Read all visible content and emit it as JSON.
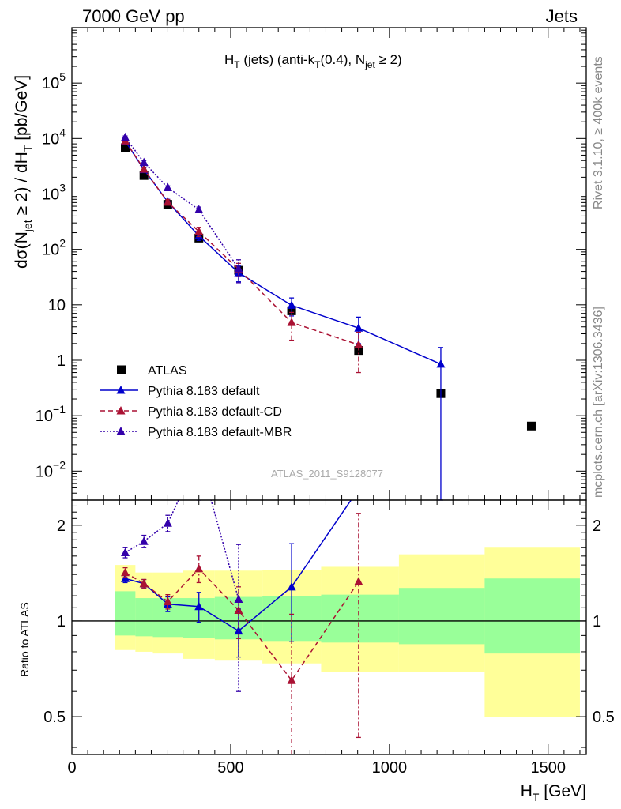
{
  "header": {
    "left": "7000 GeV pp",
    "right": "Jets"
  },
  "side_labels": {
    "rivet": "Rivet 3.1.10, ≥ 400k events",
    "mcplots": "mcplots.cern.ch [arXiv:1306.3436]"
  },
  "chart_data": [
    {
      "type": "scatter",
      "title": "H_T (jets) (anti-k_T(0.4), N_jet ≥ 2)",
      "analysis_label": "ATLAS_2011_S9128077",
      "ylabel": "dσ(N_jet ≥ 2) / dH_T [pb/GeV]",
      "yscale": "log",
      "xlim": [
        0,
        1620
      ],
      "ylim": [
        0.003,
        1000000
      ],
      "legend_position": "bottom-left",
      "y_tick_labels": [
        "10^-2",
        "10^-1",
        "1",
        "10",
        "10^2",
        "10^3",
        "10^4",
        "10^5"
      ],
      "series": [
        {
          "name": "ATLAS",
          "marker": "square",
          "color": "#000000",
          "x": [
            168,
            227,
            302,
            400,
            525,
            692,
            903,
            1162,
            1447
          ],
          "y": [
            6800,
            2150,
            650,
            160,
            42,
            7.8,
            1.5,
            0.25,
            0.065
          ]
        },
        {
          "name": "Pythia 8.183 default",
          "marker": "triangle",
          "line": "solid",
          "color": "#0000cc",
          "x": [
            168,
            227,
            302,
            400,
            525,
            692,
            903,
            1162
          ],
          "y": [
            9000,
            2750,
            720,
            175,
            38,
            9.8,
            3.8,
            0.85
          ],
          "err_low": [
            500,
            200,
            80,
            30,
            12,
            3.5,
            1.8,
            0.849
          ],
          "err_high": [
            500,
            200,
            80,
            30,
            12,
            3.5,
            2.2,
            0.85
          ]
        },
        {
          "name": "Pythia 8.183 default-CD",
          "marker": "triangle",
          "line": "dashed",
          "color": "#aa1133",
          "x": [
            168,
            227,
            302,
            400,
            525,
            692,
            903
          ],
          "y": [
            9100,
            2800,
            710,
            210,
            44,
            4.8,
            1.9
          ],
          "err_low": [
            600,
            200,
            80,
            40,
            12,
            2.5,
            1.3
          ],
          "err_high": [
            600,
            200,
            80,
            40,
            12,
            2.5,
            1.3
          ]
        },
        {
          "name": "Pythia 8.183 default-MBR",
          "marker": "triangle",
          "line": "dotted",
          "color": "#3300aa",
          "x": [
            168,
            227,
            302,
            400,
            525
          ],
          "y": [
            10500,
            3700,
            1300,
            520,
            45
          ],
          "err_low": [
            600,
            300,
            100,
            60,
            20
          ],
          "err_high": [
            600,
            300,
            100,
            60,
            20
          ]
        }
      ]
    },
    {
      "type": "line",
      "ylabel": "Ratio to ATLAS",
      "xlabel": "H_T [GeV]",
      "ylim": [
        0.38,
        2.4
      ],
      "yscale": "log",
      "xlim": [
        0,
        1620
      ],
      "x_ticks": [
        0,
        500,
        1000,
        1500
      ],
      "y_ticks": [
        0.5,
        1,
        2
      ],
      "bands": {
        "edges": [
          136,
          200,
          255,
          350,
          450,
          600,
          785,
          1030,
          1300,
          1600
        ],
        "inner_low": [
          0.9,
          0.895,
          0.89,
          0.885,
          0.875,
          0.865,
          0.855,
          0.845,
          0.79
        ],
        "inner_high": [
          1.24,
          1.18,
          1.18,
          1.18,
          1.19,
          1.2,
          1.21,
          1.27,
          1.36
        ],
        "outer_low": [
          0.81,
          0.8,
          0.79,
          0.76,
          0.75,
          0.735,
          0.69,
          0.69,
          0.5
        ],
        "outer_high": [
          1.5,
          1.42,
          1.42,
          1.44,
          1.44,
          1.45,
          1.48,
          1.62,
          1.7
        ],
        "inner_color": "#99ff99",
        "outer_color": "#ffff99"
      },
      "series": [
        {
          "name": "Pythia 8.183 default",
          "color": "#0000cc",
          "line": "solid",
          "x": [
            168,
            227,
            302,
            400,
            525,
            692,
            903
          ],
          "y": [
            1.36,
            1.31,
            1.13,
            1.11,
            0.93,
            1.28,
            2.6
          ],
          "err_low": [
            0.04,
            0.04,
            0.06,
            0.12,
            0.16,
            0.42,
            0
          ],
          "err_high": [
            0.04,
            0.04,
            0.06,
            0.12,
            0.16,
            0.47,
            0
          ]
        },
        {
          "name": "Pythia 8.183 default-CD",
          "color": "#aa1133",
          "line": "dashed",
          "x": [
            168,
            227,
            302,
            400,
            525,
            692,
            903
          ],
          "y": [
            1.42,
            1.31,
            1.15,
            1.46,
            1.08,
            0.65,
            1.33
          ],
          "err_low": [
            0.05,
            0.04,
            0.06,
            0.14,
            0.2,
            0.4,
            0.9
          ],
          "err_high": [
            0.05,
            0.04,
            0.06,
            0.14,
            0.2,
            0.4,
            0.85
          ]
        },
        {
          "name": "Pythia 8.183 default-MBR",
          "color": "#3300aa",
          "line": "dotted",
          "x": [
            168,
            227,
            302,
            400,
            525
          ],
          "y": [
            1.64,
            1.78,
            2.03,
            3.3,
            1.17
          ],
          "err_low": [
            0.06,
            0.08,
            0.12,
            0.4,
            0.57
          ],
          "err_high": [
            0.06,
            0.08,
            0.12,
            0.4,
            0.57
          ]
        }
      ]
    }
  ]
}
